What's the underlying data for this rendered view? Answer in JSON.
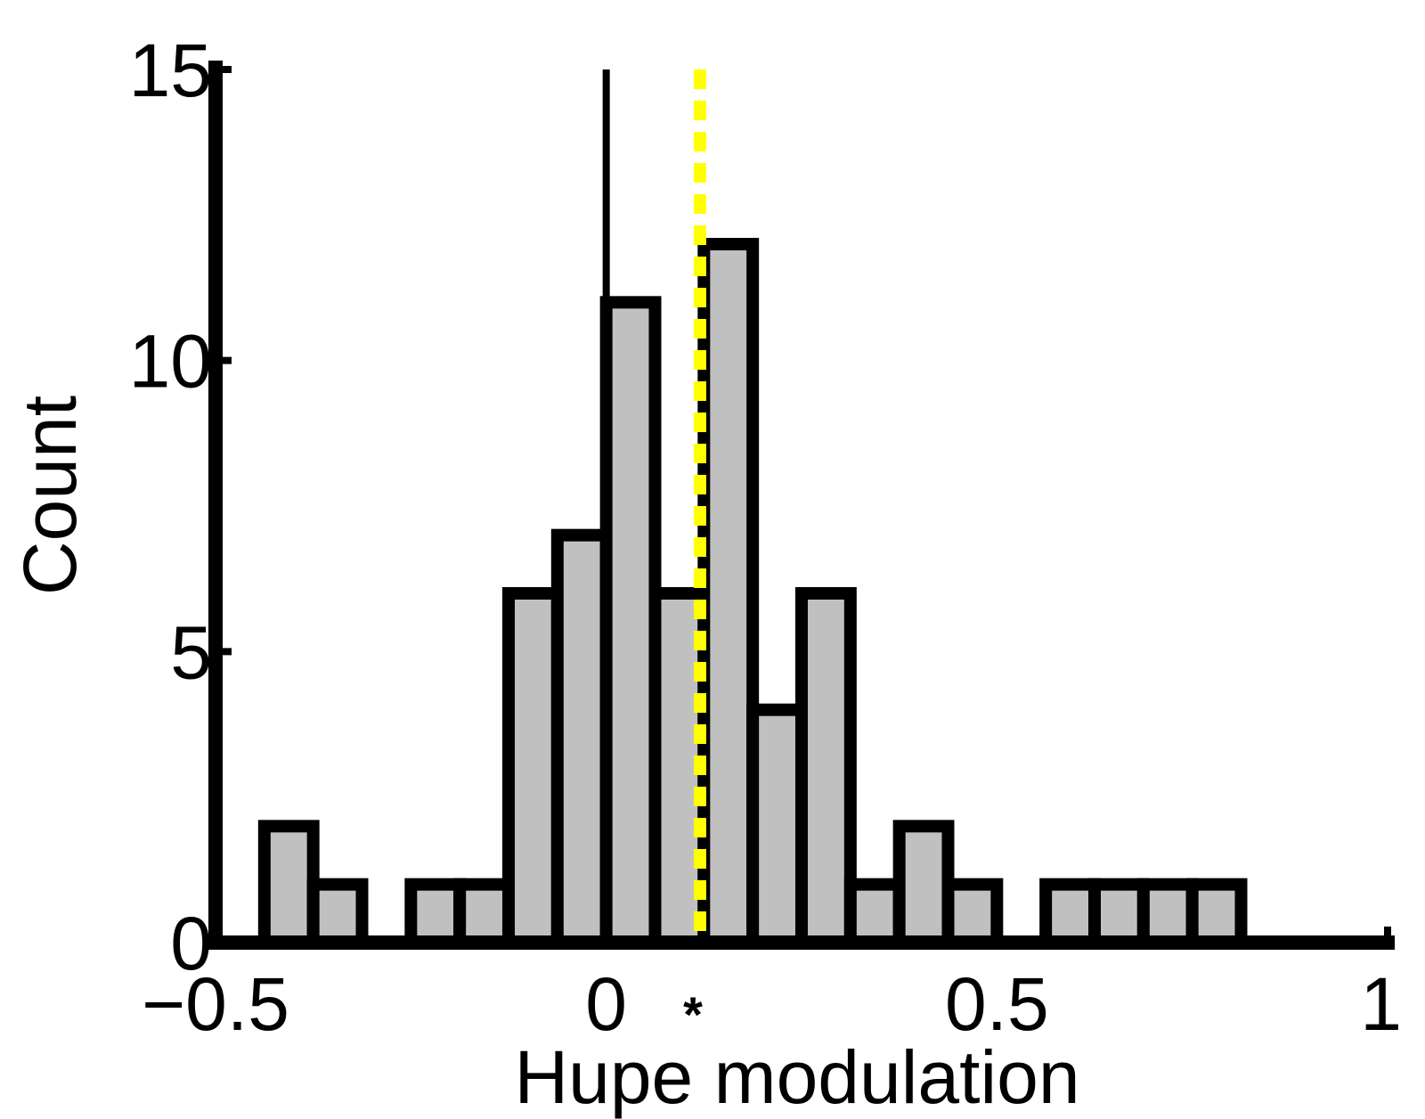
{
  "chart_data": {
    "type": "bar",
    "title": "",
    "xlabel": "Hupe modulation",
    "ylabel": "Count",
    "xlim": [
      -0.5,
      1
    ],
    "ylim": [
      0,
      15
    ],
    "xticks": [
      -0.5,
      0,
      0.5,
      1
    ],
    "xtick_labels": [
      "−0.5",
      "0",
      "0.5",
      "1"
    ],
    "yticks": [
      0,
      5,
      10,
      15
    ],
    "ytick_labels": [
      "0",
      "5",
      "10",
      "15"
    ],
    "bin_width": 0.0625,
    "bins": [
      {
        "left": -0.4375,
        "right": -0.375,
        "count": 2
      },
      {
        "left": -0.375,
        "right": -0.3125,
        "count": 1
      },
      {
        "left": -0.3125,
        "right": -0.25,
        "count": 0
      },
      {
        "left": -0.25,
        "right": -0.1875,
        "count": 1
      },
      {
        "left": -0.1875,
        "right": -0.125,
        "count": 1
      },
      {
        "left": -0.125,
        "right": -0.0625,
        "count": 6
      },
      {
        "left": -0.0625,
        "right": 0,
        "count": 7
      },
      {
        "left": 0,
        "right": 0.0625,
        "count": 11
      },
      {
        "left": 0.0625,
        "right": 0.125,
        "count": 6
      },
      {
        "left": 0.125,
        "right": 0.1875,
        "count": 12
      },
      {
        "left": 0.1875,
        "right": 0.25,
        "count": 4
      },
      {
        "left": 0.25,
        "right": 0.3125,
        "count": 6
      },
      {
        "left": 0.3125,
        "right": 0.375,
        "count": 1
      },
      {
        "left": 0.375,
        "right": 0.4375,
        "count": 2
      },
      {
        "left": 0.4375,
        "right": 0.5,
        "count": 1
      },
      {
        "left": 0.5,
        "right": 0.5625,
        "count": 0
      },
      {
        "left": 0.5625,
        "right": 0.625,
        "count": 1
      },
      {
        "left": 0.625,
        "right": 0.6875,
        "count": 1
      },
      {
        "left": 0.6875,
        "right": 0.75,
        "count": 1
      },
      {
        "left": 0.75,
        "right": 0.8125,
        "count": 1
      }
    ],
    "reference_line_x": 0,
    "median_line_x": 0.12,
    "median_marker": "*",
    "colors": {
      "bar_fill": "#c0c0c0",
      "bar_edge": "#000000",
      "median_line": "#ffff00",
      "axes": "#000000"
    },
    "grid": false,
    "legend": "none"
  }
}
